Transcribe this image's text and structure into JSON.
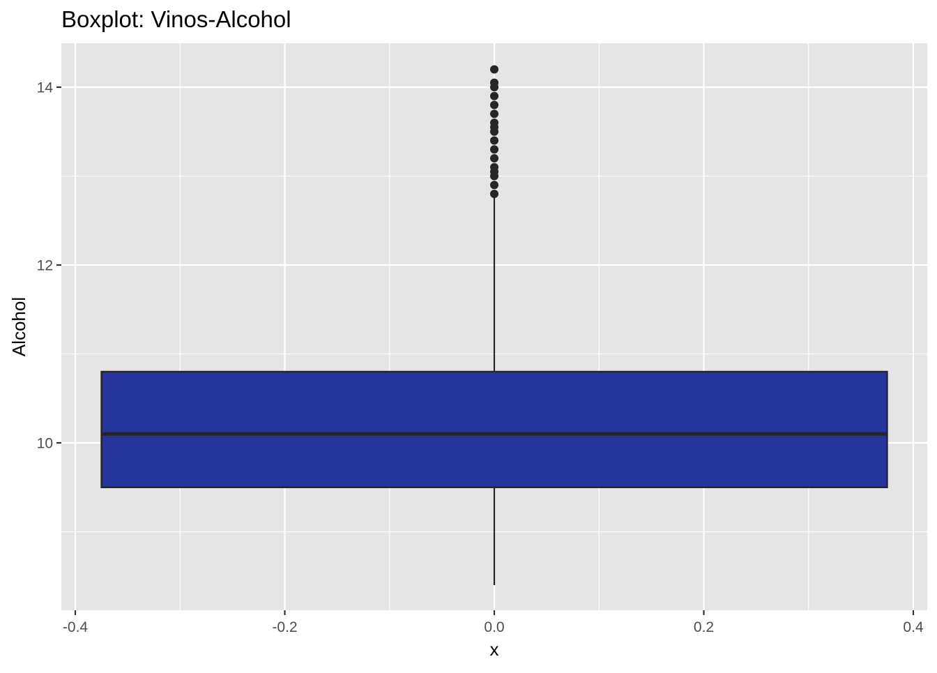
{
  "chart_data": {
    "type": "boxplot",
    "title": "Boxplot: Vinos-Alcohol",
    "xlabel": "x",
    "ylabel": "Alcohol",
    "xlim": [
      -0.4,
      0.4
    ],
    "ylim": [
      8.0,
      14.5
    ],
    "x_ticks": [
      -0.4,
      -0.2,
      0.0,
      0.2,
      0.4
    ],
    "x_tick_labels": [
      "-0.4",
      "-0.2",
      "0.0",
      "0.2",
      "0.4"
    ],
    "y_ticks": [
      10,
      12,
      14
    ],
    "y_tick_labels": [
      "10",
      "12",
      "14"
    ],
    "grid": true,
    "panel_background": "#e5e5e5",
    "gridline_color": "#ffffff",
    "box_fill": "#25359c",
    "box_outline": "#262626",
    "outlier_color": "#262626",
    "box": {
      "x_min": -0.375,
      "x_max": 0.375,
      "whisker_x": 0.0,
      "min": 8.4,
      "q1": 9.5,
      "median": 10.1,
      "q3": 10.8,
      "max": 12.8
    },
    "outliers": [
      12.8,
      12.9,
      13.0,
      13.05,
      13.1,
      13.2,
      13.3,
      13.4,
      13.5,
      13.55,
      13.6,
      13.7,
      13.8,
      13.9,
      14.0,
      14.05,
      14.2
    ]
  }
}
